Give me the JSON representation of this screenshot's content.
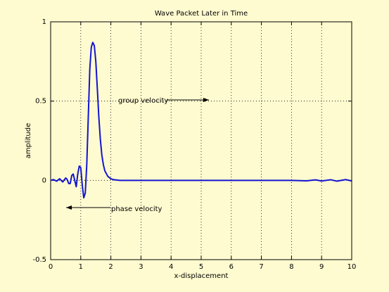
{
  "chart_data": {
    "type": "line",
    "title": "Wave Packet Later in Time",
    "x_label": "x-displacement",
    "y_label": "amplitude",
    "annotations": [
      "group  velocity",
      "phase velocity"
    ],
    "x": [
      0,
      0.1,
      0.2,
      0.3,
      0.4,
      0.5,
      0.55,
      0.6,
      0.65,
      0.7,
      0.75,
      0.8,
      0.85,
      0.9,
      0.95,
      1.0,
      1.05,
      1.1,
      1.15,
      1.2,
      1.25,
      1.3,
      1.35,
      1.4,
      1.45,
      1.5,
      1.55,
      1.6,
      1.65,
      1.7,
      1.75,
      1.8,
      1.9,
      2.0,
      2.1,
      2.2,
      2.3,
      3,
      4,
      5,
      6,
      7,
      8,
      8.5,
      8.8,
      9,
      9.3,
      9.5,
      9.8,
      10
    ],
    "series": [
      {
        "name": "amplitude",
        "color": "#1414d2",
        "values": [
          0,
          0.005,
          -0.005,
          0.01,
          -0.01,
          0.015,
          0.005,
          -0.02,
          -0.02,
          0.03,
          0.04,
          0,
          -0.04,
          0.04,
          0.09,
          0.08,
          -0.03,
          -0.11,
          -0.08,
          0.1,
          0.4,
          0.7,
          0.84,
          0.87,
          0.85,
          0.75,
          0.58,
          0.4,
          0.26,
          0.16,
          0.1,
          0.06,
          0.025,
          0.01,
          0.004,
          0.002,
          0,
          0,
          0,
          0,
          0,
          0,
          0,
          -0.003,
          0.003,
          -0.004,
          0.004,
          -0.005,
          0.005,
          -0.004
        ]
      }
    ],
    "xlim": [
      0,
      10
    ],
    "xticks": [
      0,
      1,
      2,
      3,
      4,
      5,
      6,
      7,
      8,
      9,
      10
    ],
    "ylim": [
      -0.5,
      1
    ],
    "yticks": [
      -0.5,
      0,
      0.5,
      1
    ],
    "grid": true
  }
}
